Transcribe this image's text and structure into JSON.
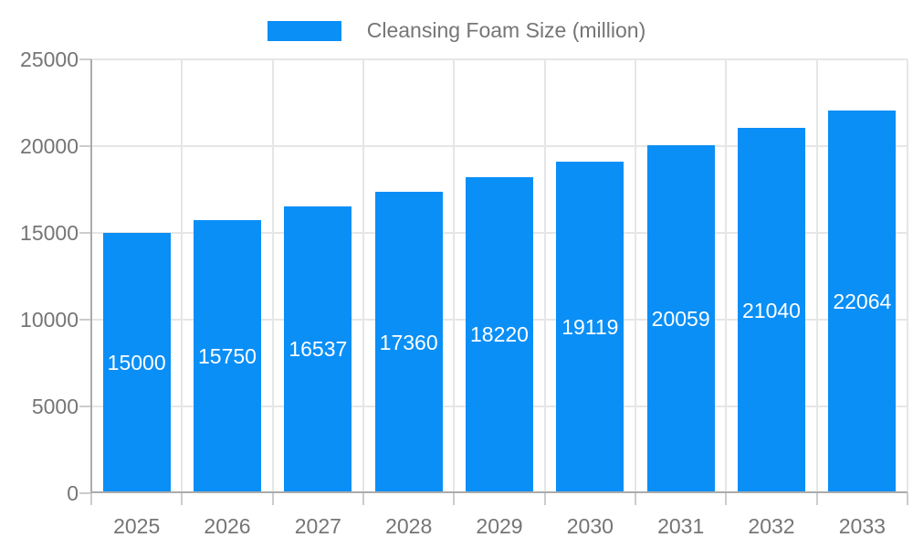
{
  "chart_data": {
    "type": "bar",
    "title": "",
    "categories": [
      "2025",
      "2026",
      "2027",
      "2028",
      "2029",
      "2030",
      "2031",
      "2032",
      "2033"
    ],
    "series": [
      {
        "name": "Cleansing Foam Size (million)",
        "values": [
          15000,
          15750,
          16537,
          17360,
          18220,
          19119,
          20059,
          21040,
          22064
        ]
      }
    ],
    "xlabel": "",
    "ylabel": "",
    "ylim": [
      0,
      25000
    ],
    "yticks": [
      0,
      5000,
      10000,
      15000,
      20000,
      25000
    ],
    "grid": true,
    "legend_position": "top-center",
    "value_labels": "inside-center",
    "colors": {
      "bar": "#0a8ff7",
      "bar_value_label": "#ffffff",
      "axis_text": "#757575",
      "gridline": "#e6e6e6",
      "axis_line": "#ababab",
      "tick": "#cccccc",
      "background": "#ffffff"
    }
  }
}
